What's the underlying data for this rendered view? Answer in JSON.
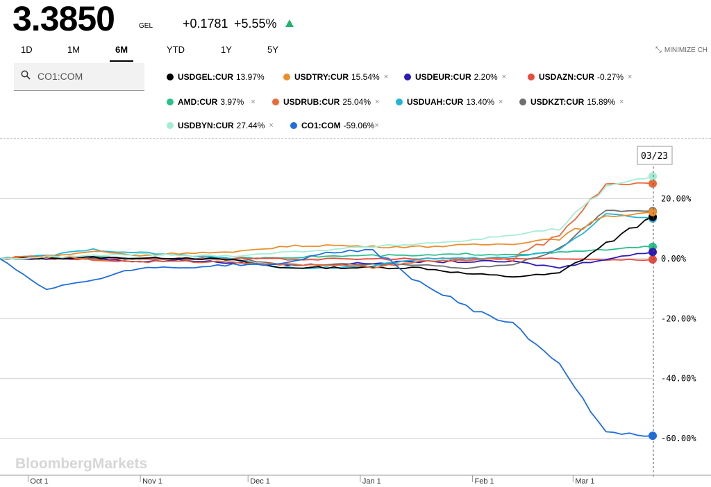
{
  "header": {
    "price": "3.3850",
    "currency": "GEL",
    "change": "+0.1781",
    "change_pct": "+5.55%",
    "up_color": "#23b36f"
  },
  "range_tabs": [
    {
      "label": "1D",
      "active": false
    },
    {
      "label": "1M",
      "active": false
    },
    {
      "label": "6M",
      "active": true
    },
    {
      "label": "YTD",
      "active": false
    },
    {
      "label": "1Y",
      "active": false
    },
    {
      "label": "5Y",
      "active": false
    }
  ],
  "minimize_label": "MINIMIZE CH",
  "search": {
    "value": "CO1:COM",
    "icon": "search-icon"
  },
  "legend": [
    {
      "name": "USDGEL:CUR",
      "value": "13.97%",
      "color": "#000000",
      "close": ""
    },
    {
      "name": "USDTRY:CUR",
      "value": "15.54%",
      "color": "#ea8e2c",
      "close": "×"
    },
    {
      "name": "USDEUR:CUR",
      "value": "2.20%",
      "color": "#2d19b5",
      "close": "×"
    },
    {
      "name": "USDAZN:CUR",
      "value": "-0.27%",
      "color": "#e84c3d",
      "close": "×"
    },
    {
      "name": "AMD:CUR",
      "value": "3.97%",
      "color": "#2cc08f",
      "close": "×"
    },
    {
      "name": "USDRUB:CUR",
      "value": "25.04%",
      "color": "#ea6a3a",
      "close": "×"
    },
    {
      "name": "USDUAH:CUR",
      "value": "13.40%",
      "color": "#22b5d8",
      "close": "×"
    },
    {
      "name": "USDKZT:CUR",
      "value": "15.89%",
      "color": "#6f6f6f",
      "close": "×"
    },
    {
      "name": "USDBYN:CUR",
      "value": "27.44%",
      "color": "#a6ecd5",
      "close": "×"
    },
    {
      "name": "CO1:COM",
      "value": "-59.06%",
      "color": "#1f6ee0",
      "close": "×"
    }
  ],
  "watermark": "BloombergMarkets",
  "chart_data": {
    "type": "line",
    "x_tick_labels": [
      "Oct 1",
      "Nov 1",
      "Dec 1",
      "Jan 1",
      "Feb 1",
      "Mar 1"
    ],
    "y_tick_labels": [
      "20.00%",
      "0.00%",
      "-20.00%",
      "-40.00%",
      "-60.00%"
    ],
    "y_ticks": [
      20,
      0,
      -20,
      -40,
      -60
    ],
    "ylim": [
      -72,
      40
    ],
    "hover_date": "03/23",
    "x_dates": [
      "09/23",
      "10/01",
      "10/15",
      "11/01",
      "11/15",
      "12/01",
      "12/15",
      "01/01",
      "01/15",
      "02/01",
      "02/15",
      "03/01",
      "03/08",
      "03/15",
      "03/23"
    ],
    "series": [
      {
        "name": "USDGEL:CUR",
        "color": "#000000",
        "values": [
          0,
          0.2,
          0.4,
          0.1,
          0.3,
          -0.5,
          -3,
          -3,
          -3,
          -3,
          -5,
          -6,
          -5,
          5,
          13.97
        ]
      },
      {
        "name": "USDTRY:CUR",
        "color": "#ea8e2c",
        "values": [
          0,
          0.5,
          2.5,
          1,
          2,
          2,
          4,
          4.5,
          4,
          4,
          4.5,
          5,
          7,
          14,
          15.54
        ]
      },
      {
        "name": "USDEUR:CUR",
        "color": "#2d19b5",
        "values": [
          0,
          0,
          0.2,
          -1,
          -0.5,
          -1.5,
          -2,
          -2,
          -1.5,
          -1,
          -1,
          -1,
          -3,
          0,
          2.2
        ]
      },
      {
        "name": "USDAZN:CUR",
        "color": "#e84c3d",
        "values": [
          0,
          0,
          0,
          0,
          0,
          0,
          -0.2,
          -0.2,
          -0.1,
          -0.1,
          -0.1,
          0,
          -0.2,
          -0.27,
          -0.27
        ]
      },
      {
        "name": "AMD:CUR",
        "color": "#2cc08f",
        "values": [
          0,
          0.3,
          0.5,
          0.2,
          0.1,
          0,
          0.5,
          0.8,
          1,
          1,
          1.5,
          1.5,
          2,
          3,
          3.97
        ]
      },
      {
        "name": "USDRUB:CUR",
        "color": "#ea6a3a",
        "values": [
          0,
          1,
          -0.5,
          -1,
          -1,
          -1,
          -2,
          -2,
          -3,
          -1,
          -0.5,
          0,
          8,
          25,
          25.04
        ]
      },
      {
        "name": "USDUAH:CUR",
        "color": "#22b5d8",
        "values": [
          0,
          1,
          3,
          2,
          1,
          0,
          -3,
          -3,
          -2.5,
          0,
          0,
          0.5,
          3,
          15,
          13.4
        ]
      },
      {
        "name": "USDKZT:CUR",
        "color": "#6f6f6f",
        "values": [
          0,
          0.3,
          0.2,
          0,
          0,
          0,
          -2,
          -2,
          -2,
          -2,
          -3,
          -2,
          3,
          16,
          15.89
        ]
      },
      {
        "name": "USDBYN:CUR",
        "color": "#a6ecd5",
        "values": [
          0,
          0.5,
          1,
          1.5,
          1,
          1,
          2,
          3,
          4,
          5,
          6,
          8,
          10,
          24,
          27.44
        ]
      },
      {
        "name": "CO1:COM",
        "color": "#1f6ee0",
        "values": [
          0,
          -10,
          -7,
          -3,
          -3,
          -2,
          -2,
          2,
          3,
          -8,
          -16,
          -22,
          -35,
          -58,
          -59.06
        ]
      }
    ]
  }
}
